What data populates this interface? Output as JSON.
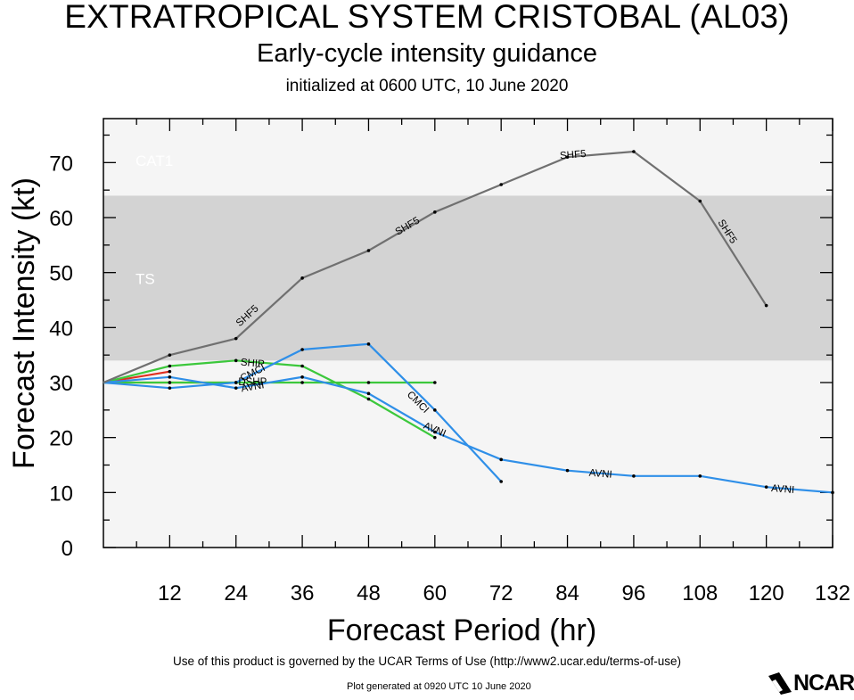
{
  "header": {
    "title": "EXTRATROPICAL SYSTEM CRISTOBAL (AL03)",
    "subtitle": "Early-cycle intensity guidance",
    "init_line": "initialized at 0600 UTC, 10 June 2020"
  },
  "chart_data": {
    "type": "line",
    "xlabel": "Forecast Period (hr)",
    "ylabel": "Forecast Intensity (kt)",
    "xlim": [
      0,
      132
    ],
    "ylim": [
      0,
      78
    ],
    "xticks": [
      12,
      24,
      36,
      48,
      60,
      72,
      84,
      96,
      108,
      120,
      132
    ],
    "yticks": [
      0,
      10,
      20,
      30,
      40,
      50,
      60,
      70
    ],
    "bands": [
      {
        "label": "TS",
        "from": 34,
        "to": 64,
        "color": "#d3d3d3"
      },
      {
        "label": "CAT1",
        "from": 64,
        "to": 78,
        "color": "#f5f5f5"
      }
    ],
    "below_band_color": "#f5f5f5",
    "grid": false,
    "series": [
      {
        "name": "SHF5",
        "color": "#707070",
        "x": [
          0,
          12,
          24,
          36,
          48,
          60,
          72,
          84,
          96,
          108,
          120
        ],
        "y": [
          30,
          35,
          38,
          49,
          54,
          61,
          66,
          71,
          72,
          63,
          44
        ],
        "labels_at": [
          [
            26,
            42.2
          ],
          [
            55,
            58.5
          ],
          [
            85,
            71.5
          ],
          [
            113,
            57.5
          ]
        ]
      },
      {
        "name": "AVNI",
        "color": "#2f8fe8",
        "x": [
          0,
          12,
          24,
          36,
          48,
          60,
          72,
          84,
          96,
          108,
          120,
          132
        ],
        "y": [
          30,
          31,
          29,
          31,
          28,
          21,
          16,
          14,
          13,
          13,
          11,
          10
        ],
        "labels_at": [
          [
            27,
            29.3
          ],
          [
            60,
            21.5
          ],
          [
            90,
            13.5
          ],
          [
            123,
            10.7
          ]
        ]
      },
      {
        "name": "CMCI",
        "color": "#2f8fe8",
        "x": [
          0,
          12,
          24,
          36,
          48,
          60,
          72
        ],
        "y": [
          30,
          29,
          30,
          36,
          37,
          25,
          12
        ],
        "labels_at": [
          [
            27,
            31.8
          ],
          [
            57,
            26.5
          ]
        ]
      },
      {
        "name": "SHIP",
        "color": "#3cc83c",
        "x": [
          0,
          12,
          24,
          36,
          48,
          60
        ],
        "y": [
          30,
          33,
          34,
          33,
          27,
          20
        ],
        "labels_at": [
          [
            27,
            33.6
          ]
        ]
      },
      {
        "name": "DSHP",
        "color": "#3cc83c",
        "x": [
          0,
          12,
          24,
          36,
          48,
          60
        ],
        "y": [
          30,
          30,
          30,
          30,
          30,
          30
        ],
        "labels_at": [
          [
            27,
            30.2
          ]
        ]
      },
      {
        "name": "",
        "color": "#e03020",
        "x": [
          0,
          12
        ],
        "y": [
          30,
          32
        ],
        "labels_at": []
      },
      {
        "name": "",
        "color": "#f0a030",
        "x": [
          0,
          12,
          24
        ],
        "y": [
          30,
          30,
          30
        ],
        "labels_at": []
      }
    ]
  },
  "footer": {
    "terms": "Use of this product is governed by the UCAR Terms of Use (http://www2.ucar.edu/terms-of-use)",
    "generated": "Plot generated at 0920 UTC   10 June 2020",
    "logo_text": "NCAR"
  }
}
